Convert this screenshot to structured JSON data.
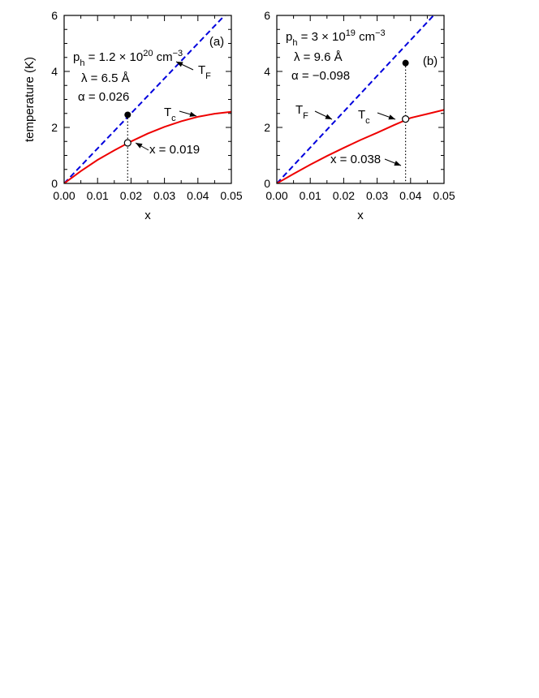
{
  "chart_data": [
    {
      "type": "line",
      "panel": "(a)",
      "xlabel": "x",
      "ylabel": "temperature  (K)",
      "xlim": [
        0,
        0.05
      ],
      "ylim": [
        0,
        6
      ],
      "xticks": [
        "0.00",
        "0.01",
        "0.02",
        "0.03",
        "0.04",
        "0.05"
      ],
      "yticks": [
        "0",
        "2",
        "4",
        "6"
      ],
      "annotations": {
        "ph": {
          "p": "p",
          "sub": "h",
          "eq": " = 1.2 × 10",
          "sup": "20",
          "unit": " cm",
          "unit_sup": "−3"
        },
        "lambda": "λ = 6.5 Å",
        "alpha": "α = 0.026",
        "x_label": "x = 0.019"
      },
      "series": [
        {
          "name": "T_F",
          "label_main": "T",
          "label_sub": "F",
          "style": "dashed",
          "color": "#0000dd",
          "x": [
            0,
            0.01,
            0.02,
            0.03,
            0.04,
            0.05
          ],
          "y": [
            0,
            1.25,
            2.5,
            3.75,
            5.0,
            6.25
          ]
        },
        {
          "name": "T_c",
          "label_main": "T",
          "label_sub": "c",
          "style": "solid",
          "color": "#ee0000",
          "x": [
            0,
            0.005,
            0.01,
            0.015,
            0.02,
            0.025,
            0.03,
            0.035,
            0.04,
            0.045,
            0.05
          ],
          "y": [
            0,
            0.44,
            0.84,
            1.18,
            1.5,
            1.78,
            2.02,
            2.22,
            2.38,
            2.49,
            2.56
          ]
        }
      ],
      "points": {
        "x": 0.019,
        "filled_y": 2.45,
        "open_y": 1.45
      }
    },
    {
      "type": "line",
      "panel": "(b)",
      "xlabel": "x",
      "ylabel": "",
      "xlim": [
        0,
        0.05
      ],
      "ylim": [
        0,
        6
      ],
      "xticks": [
        "0.00",
        "0.01",
        "0.02",
        "0.03",
        "0.04",
        "0.05"
      ],
      "yticks": [
        "0",
        "2",
        "4",
        "6"
      ],
      "annotations": {
        "ph": {
          "p": "p",
          "sub": "h",
          "eq": " = 3 × 10",
          "sup": "19",
          "unit": " cm",
          "unit_sup": "−3"
        },
        "lambda": "λ = 9.6 Å",
        "alpha": "α = −0.098",
        "x_label": "x = 0.038"
      },
      "series": [
        {
          "name": "T_F",
          "label_main": "T",
          "label_sub": "F",
          "style": "dashed",
          "color": "#0000dd",
          "x": [
            0,
            0.01,
            0.02,
            0.03,
            0.04,
            0.05
          ],
          "y": [
            0,
            1.28,
            2.56,
            3.84,
            5.12,
            6.4
          ]
        },
        {
          "name": "T_c",
          "label_main": "T",
          "label_sub": "c",
          "style": "solid",
          "color": "#ee0000",
          "x": [
            0,
            0.005,
            0.01,
            0.015,
            0.02,
            0.025,
            0.03,
            0.035,
            0.04,
            0.045,
            0.05
          ],
          "y": [
            0,
            0.34,
            0.67,
            0.98,
            1.27,
            1.55,
            1.81,
            2.08,
            2.34,
            2.48,
            2.63
          ]
        }
      ],
      "points": {
        "x": 0.0385,
        "filled_y": 4.3,
        "open_y": 2.3
      }
    }
  ]
}
